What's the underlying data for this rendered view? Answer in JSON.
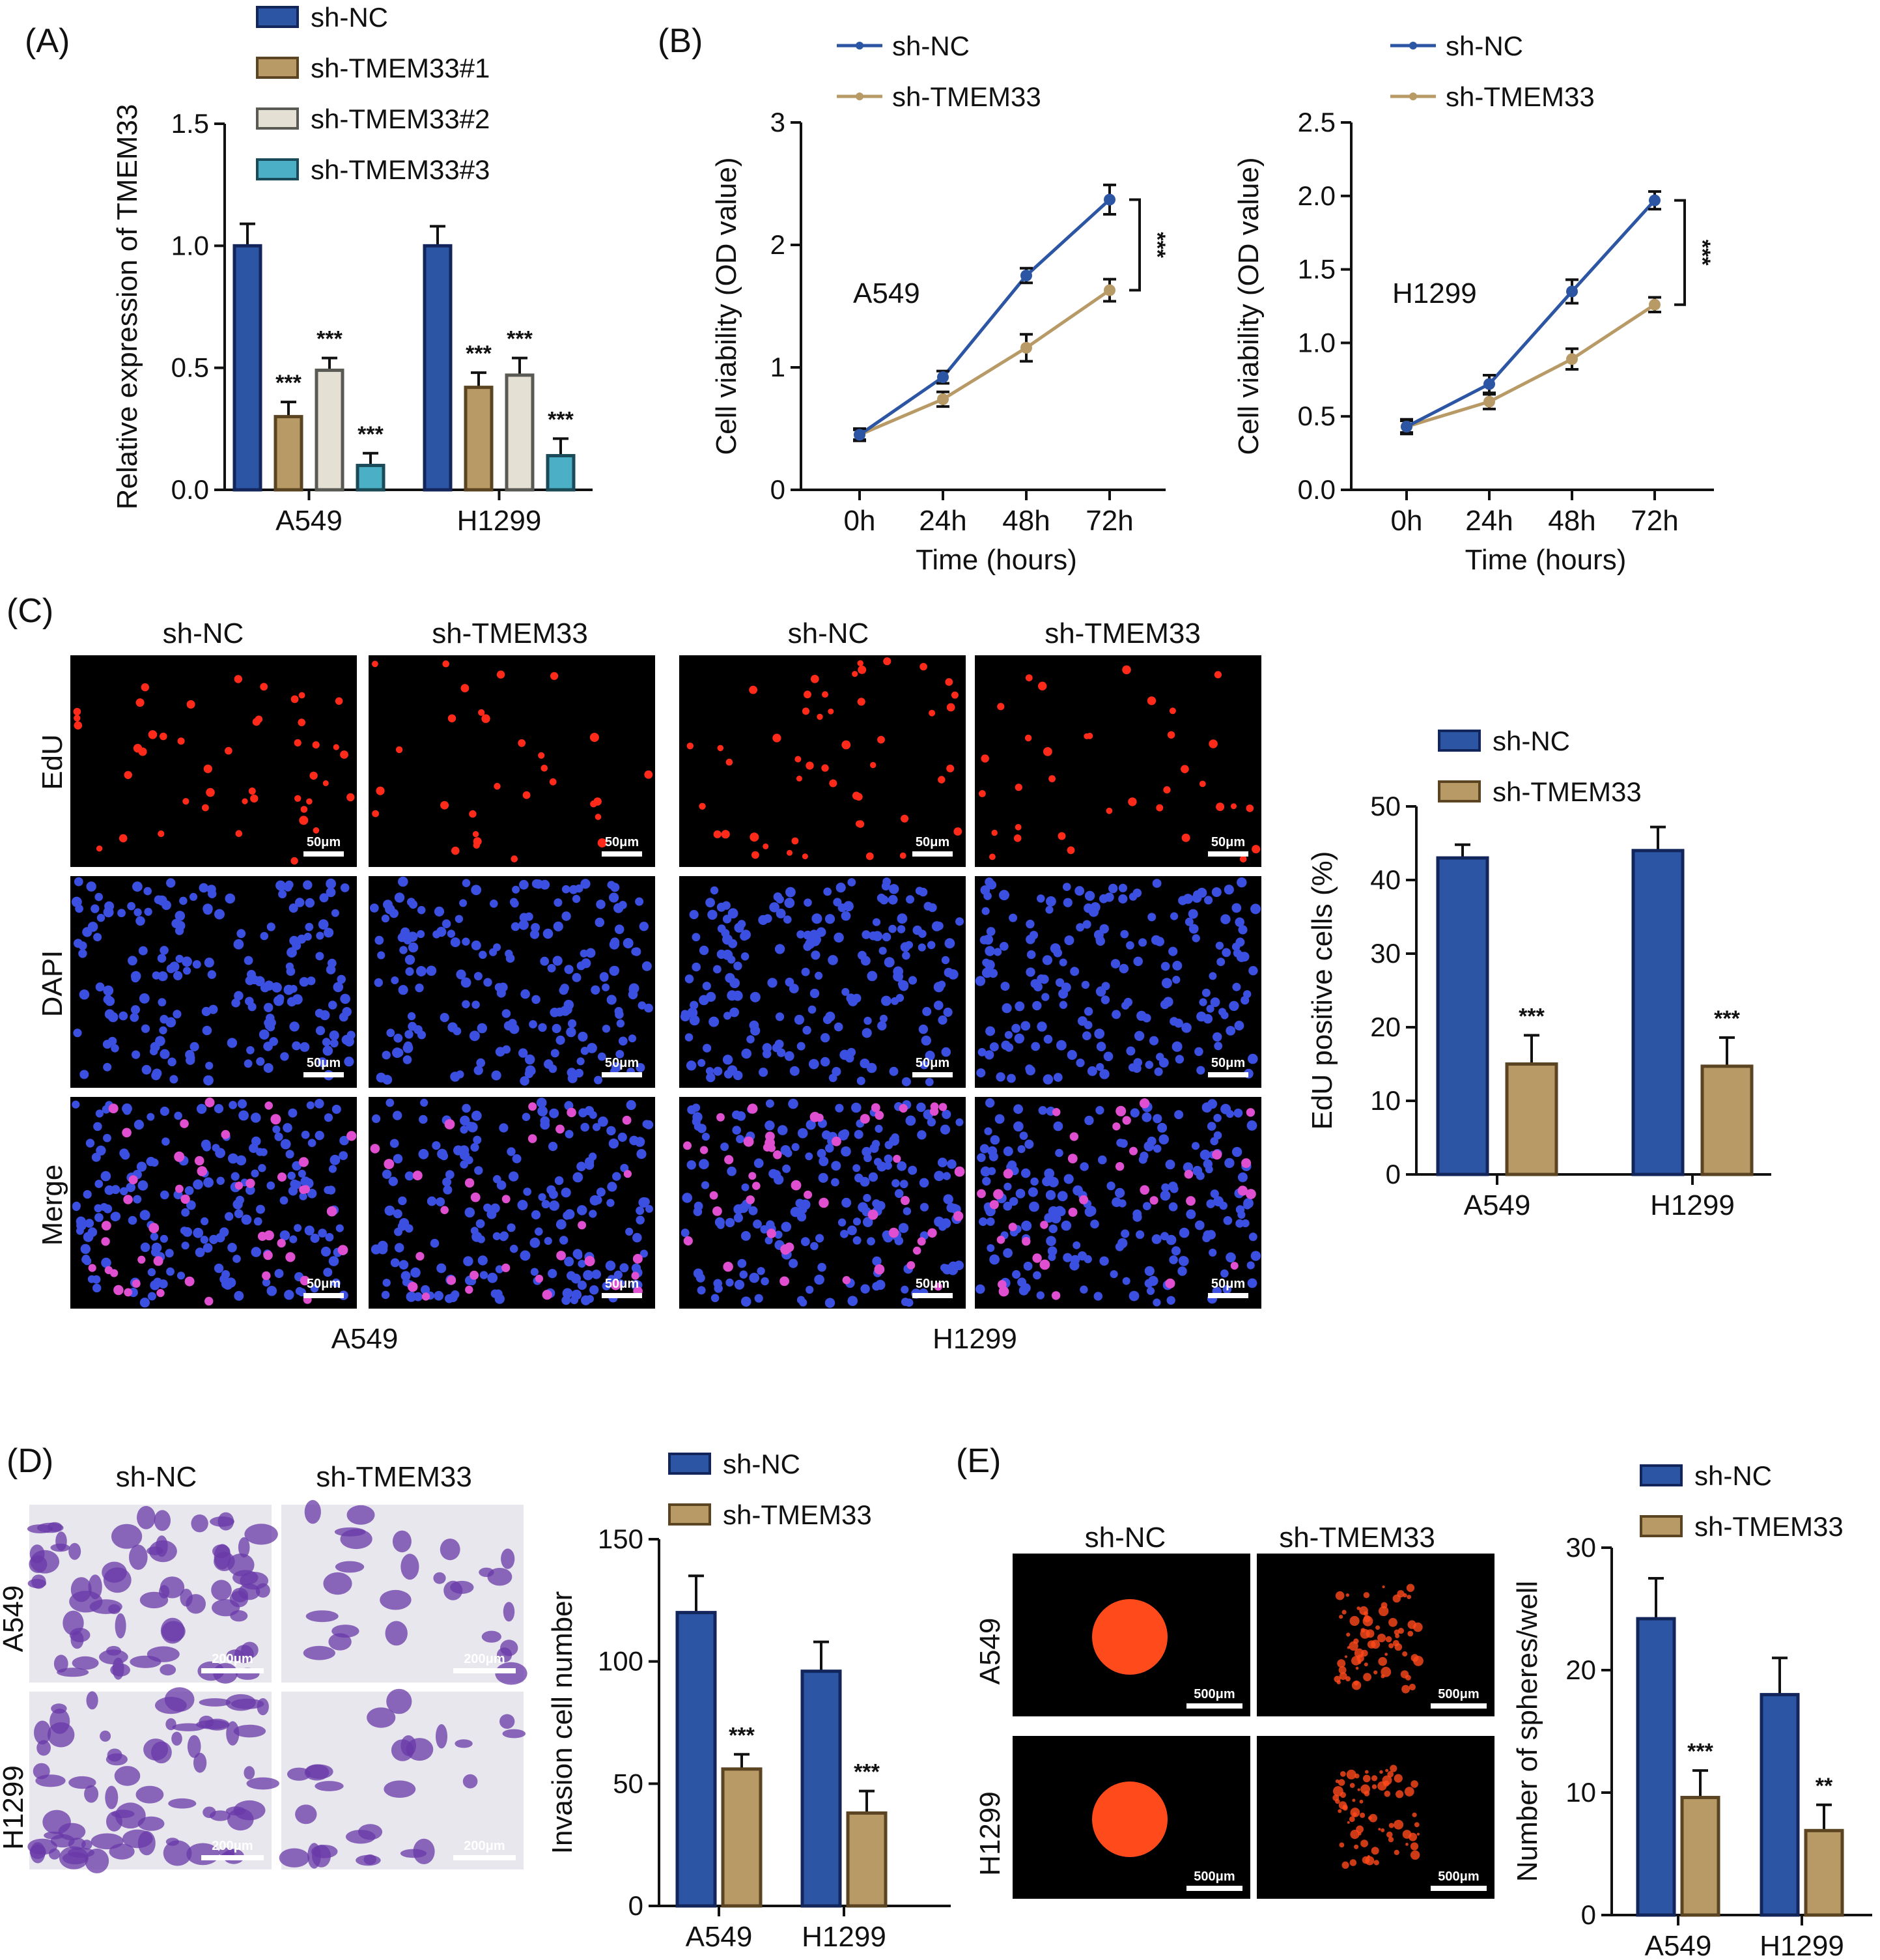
{
  "figure": {
    "colors": {
      "sh_nc": "#2c55a4",
      "sh_nc_edge": "#13265b",
      "sh_tmem": "#b89a66",
      "sh_tmem_edge": "#5b4422",
      "tmem2": "#e4e0d3",
      "tmem2_edge": "#5a5a55",
      "tmem3": "#4bb0c6",
      "tmem3_edge": "#1b4a58",
      "edu": "#ff2a1a",
      "dapi": "#3b4fe0",
      "merge": "#e04fd0",
      "crystal": "#6a3aa8",
      "sphere": "#ff4a1c"
    },
    "icons": {
      "scale_bar": "scale-bar-icon"
    }
  },
  "chart_data": [
    {
      "panel": "(A)",
      "type": "bar",
      "title": "",
      "ylabel": "Relative expression of TMEM33",
      "xlabel": "",
      "ylim": [
        0,
        1.5
      ],
      "yticks": [
        "0.0",
        "0.5",
        "1.0",
        "1.5"
      ],
      "categories": [
        "A549",
        "H1299"
      ],
      "series": [
        {
          "name": "sh-NC",
          "values": [
            1.0,
            1.0
          ],
          "errors": [
            0.09,
            0.08
          ],
          "sig": [
            "",
            ""
          ]
        },
        {
          "name": "sh-TMEM33#1",
          "values": [
            0.3,
            0.42
          ],
          "errors": [
            0.06,
            0.06
          ],
          "sig": [
            "***",
            "***"
          ]
        },
        {
          "name": "sh-TMEM33#2",
          "values": [
            0.49,
            0.47
          ],
          "errors": [
            0.05,
            0.07
          ],
          "sig": [
            "***",
            "***"
          ]
        },
        {
          "name": "sh-TMEM33#3",
          "values": [
            0.1,
            0.14
          ],
          "errors": [
            0.05,
            0.07
          ],
          "sig": [
            "***",
            "***"
          ]
        }
      ],
      "legend_position": "top"
    },
    {
      "panel": "(B)",
      "type": "line",
      "annotation": "A549",
      "ylabel": "Cell viability (OD value)",
      "xlabel": "Time (hours)",
      "x": [
        "0h",
        "24h",
        "48h",
        "72h"
      ],
      "ylim": [
        0,
        3
      ],
      "yticks": [
        "0",
        "1",
        "2",
        "3"
      ],
      "series": [
        {
          "name": "sh-NC",
          "values": [
            0.45,
            0.92,
            1.75,
            2.37
          ],
          "errors": [
            0.05,
            0.05,
            0.06,
            0.12
          ]
        },
        {
          "name": "sh-TMEM33",
          "values": [
            0.45,
            0.74,
            1.16,
            1.63
          ],
          "errors": [
            0.04,
            0.06,
            0.11,
            0.09
          ]
        }
      ],
      "sig": "***",
      "legend_position": "top"
    },
    {
      "panel": "",
      "type": "line",
      "annotation": "H1299",
      "ylabel": "Cell viability (OD value)",
      "xlabel": "Time (hours)",
      "x": [
        "0h",
        "24h",
        "48h",
        "72h"
      ],
      "ylim": [
        0,
        2.5
      ],
      "yticks": [
        "0.0",
        "0.5",
        "1.0",
        "1.5",
        "2.0",
        "2.5"
      ],
      "series": [
        {
          "name": "sh-NC",
          "values": [
            0.43,
            0.72,
            1.35,
            1.97
          ],
          "errors": [
            0.05,
            0.06,
            0.08,
            0.06
          ]
        },
        {
          "name": "sh-TMEM33",
          "values": [
            0.43,
            0.6,
            0.89,
            1.26
          ],
          "errors": [
            0.04,
            0.05,
            0.07,
            0.05
          ]
        }
      ],
      "sig": "***",
      "legend_position": "top"
    },
    {
      "panel": "(C)",
      "type": "bar",
      "ylabel": "EdU positive cells (%)",
      "xlabel": "",
      "ylim": [
        0,
        50
      ],
      "yticks": [
        "0",
        "10",
        "20",
        "30",
        "40",
        "50"
      ],
      "categories": [
        "A549",
        "H1299"
      ],
      "series": [
        {
          "name": "sh-NC",
          "values": [
            43,
            44
          ],
          "errors": [
            1.8,
            3.2
          ],
          "sig": [
            "",
            ""
          ]
        },
        {
          "name": "sh-TMEM33",
          "values": [
            15,
            14.7
          ],
          "errors": [
            3.9,
            3.9
          ],
          "sig": [
            "***",
            "***"
          ]
        }
      ],
      "legend_position": "top"
    },
    {
      "panel": "(D)",
      "type": "bar",
      "ylabel": "Invasion cell number",
      "xlabel": "",
      "ylim": [
        0,
        150
      ],
      "yticks": [
        "0",
        "50",
        "100",
        "150"
      ],
      "categories": [
        "A549",
        "H1299"
      ],
      "series": [
        {
          "name": "sh-NC",
          "values": [
            120,
            96
          ],
          "errors": [
            15,
            12
          ],
          "sig": [
            "",
            ""
          ]
        },
        {
          "name": "sh-TMEM33",
          "values": [
            56,
            38
          ],
          "errors": [
            6,
            9
          ],
          "sig": [
            "***",
            "***"
          ]
        }
      ],
      "legend_position": "top"
    },
    {
      "panel": "(E)",
      "type": "bar",
      "ylabel": "Number of spheres/well",
      "xlabel": "",
      "ylim": [
        0,
        30
      ],
      "yticks": [
        "0",
        "10",
        "20",
        "30"
      ],
      "categories": [
        "A549",
        "H1299"
      ],
      "series": [
        {
          "name": "sh-NC",
          "values": [
            24.2,
            18
          ],
          "errors": [
            3.3,
            3.0
          ],
          "sig": [
            "",
            ""
          ]
        },
        {
          "name": "sh-TMEM33",
          "values": [
            9.6,
            6.9
          ],
          "errors": [
            2.2,
            2.1
          ],
          "sig": [
            "***",
            "**"
          ]
        }
      ],
      "legend_position": "top"
    }
  ],
  "images": {
    "C": {
      "panel": "(C)",
      "columns": [
        "sh-NC",
        "sh-TMEM33",
        "sh-NC",
        "sh-TMEM33"
      ],
      "rows": [
        "EdU",
        "DAPI",
        "Merge"
      ],
      "groups": [
        "A549",
        "H1299"
      ],
      "scale": "50μm"
    },
    "D": {
      "panel": "(D)",
      "columns": [
        "sh-NC",
        "sh-TMEM33"
      ],
      "rows": [
        "A549",
        "H1299"
      ],
      "scale": "200μm"
    },
    "E": {
      "panel": "(E)",
      "columns": [
        "sh-NC",
        "sh-TMEM33"
      ],
      "rows": [
        "A549",
        "H1299"
      ],
      "scale": "500μm"
    }
  }
}
